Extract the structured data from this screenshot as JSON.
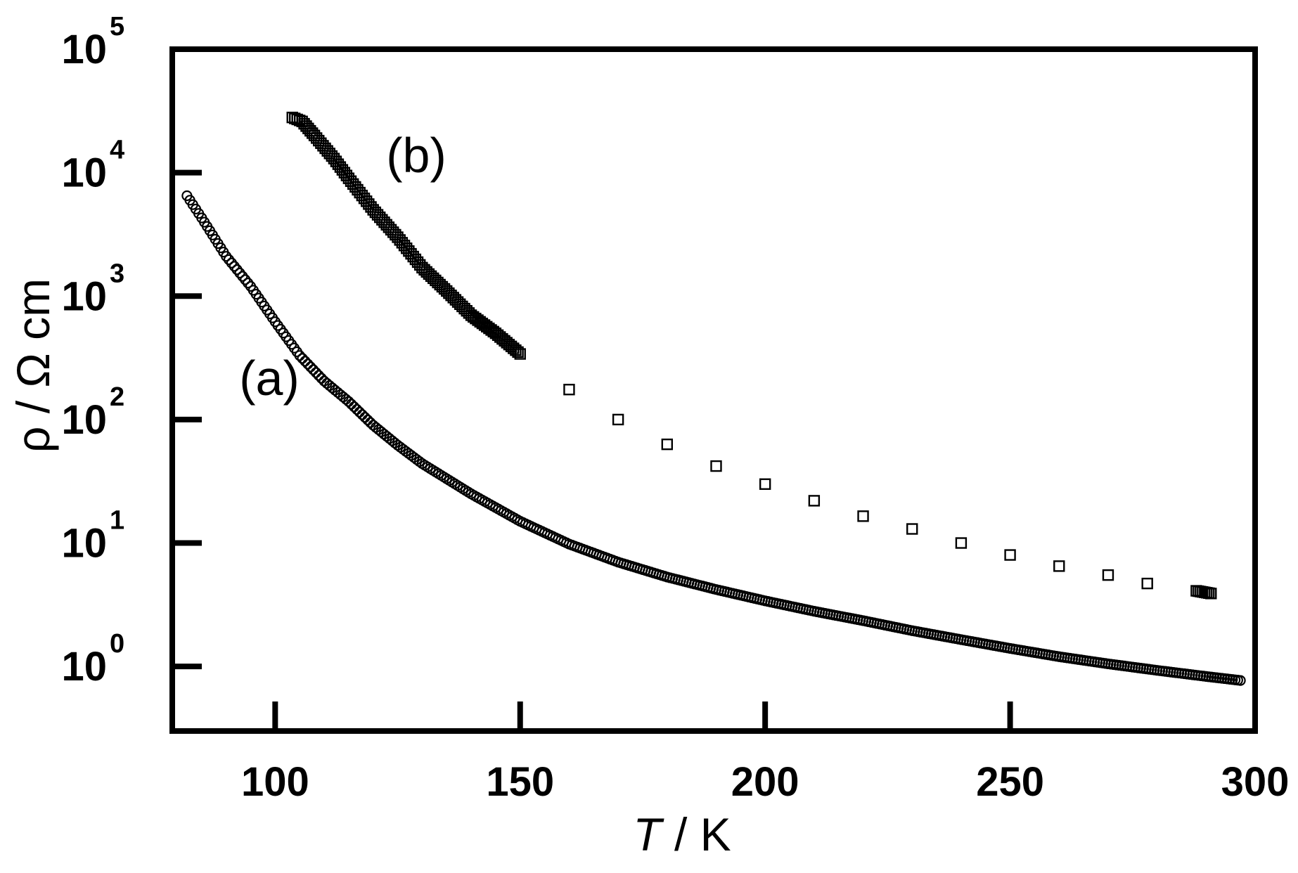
{
  "chart_data": {
    "type": "scatter",
    "title": "",
    "xlabel": {
      "var": "T",
      "rest": " / K"
    },
    "ylabel": "ρ / Ω cm",
    "xlim": [
      79,
      300
    ],
    "ylim": [
      0.3,
      100000
    ],
    "yscale": "log",
    "xticks": [
      100,
      150,
      200,
      250,
      300
    ],
    "xtick_labels": [
      "100",
      "150",
      "200",
      "250",
      "300"
    ],
    "yticks": [
      1,
      10,
      100,
      1000,
      10000,
      100000
    ],
    "ytick_labels": [
      {
        "base": "10",
        "exp": "0"
      },
      {
        "base": "10",
        "exp": "1"
      },
      {
        "base": "10",
        "exp": "2"
      },
      {
        "base": "10",
        "exp": "3"
      },
      {
        "base": "10",
        "exp": "4"
      },
      {
        "base": "10",
        "exp": "5"
      }
    ],
    "grid": false,
    "legend": "none",
    "series": [
      {
        "label": "(a)",
        "marker": "circle",
        "points": [
          [
            82,
            6500
          ],
          [
            85,
            4300
          ],
          [
            90,
            2100
          ],
          [
            95,
            1200
          ],
          [
            100,
            620
          ],
          [
            105,
            330
          ],
          [
            110,
            205
          ],
          [
            115,
            140
          ],
          [
            120,
            90
          ],
          [
            125,
            62
          ],
          [
            130,
            44
          ],
          [
            140,
            25
          ],
          [
            150,
            15
          ],
          [
            160,
            9.8
          ],
          [
            170,
            7
          ],
          [
            180,
            5.3
          ],
          [
            190,
            4.2
          ],
          [
            200,
            3.4
          ],
          [
            210,
            2.8
          ],
          [
            220,
            2.35
          ],
          [
            230,
            1.95
          ],
          [
            240,
            1.65
          ],
          [
            250,
            1.4
          ],
          [
            260,
            1.2
          ],
          [
            270,
            1.05
          ],
          [
            280,
            0.93
          ],
          [
            290,
            0.83
          ],
          [
            297,
            0.77
          ]
        ]
      },
      {
        "label": "(b)",
        "marker": "square",
        "points": [
          [
            103.5,
            28000
          ],
          [
            105.5,
            26000
          ],
          [
            108,
            20000
          ],
          [
            112,
            13000
          ],
          [
            115,
            9000
          ],
          [
            120,
            5000
          ],
          [
            125,
            3000
          ],
          [
            130,
            1700
          ],
          [
            135,
            1100
          ],
          [
            140,
            700
          ],
          [
            145,
            500
          ],
          [
            150,
            340
          ],
          [
            160,
            175
          ],
          [
            170,
            100
          ],
          [
            180,
            63
          ],
          [
            190,
            42
          ],
          [
            200,
            30
          ],
          [
            210,
            22
          ],
          [
            220,
            16.5
          ],
          [
            230,
            13
          ],
          [
            240,
            10
          ],
          [
            250,
            8
          ],
          [
            260,
            6.5
          ],
          [
            270,
            5.5
          ],
          [
            278,
            4.7
          ],
          [
            288,
            4.1
          ],
          [
            291,
            3.9
          ]
        ]
      }
    ]
  }
}
